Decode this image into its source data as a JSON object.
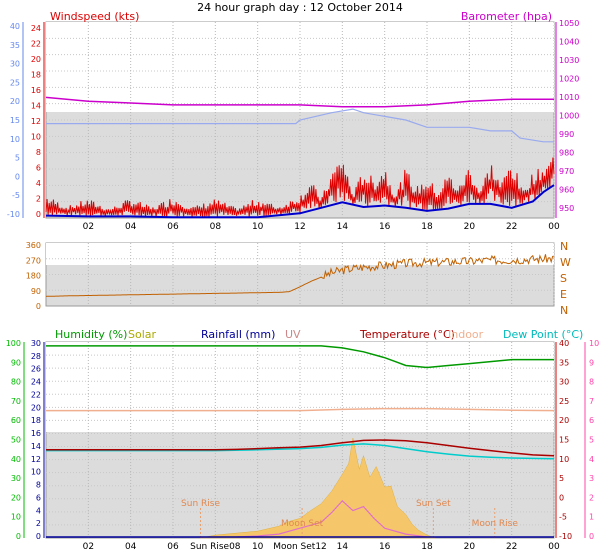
{
  "title": "24 hour graph day : 12 October 2014",
  "colors": {
    "wind": "#dd0000",
    "gust": "#0000cc",
    "baro": "#cc00cc",
    "temp_ref": "#99aaee",
    "dir": "#c06000",
    "humidity": "#009900",
    "solar": "#cccc00",
    "rain": "#000099",
    "uv": "#cc8888",
    "temperature": "#aa0000",
    "indoor": "#f0b090",
    "dewpoint": "#00cccc",
    "pink": "#ff44aa",
    "axis_left": "#6688ee",
    "axis_green": "#00bb00"
  },
  "chart_data": [
    {
      "type": "line",
      "id": "wind-baro",
      "series_labels": {
        "left": "Windspeed (kts)",
        "right": "Barometer (hpa)"
      },
      "left_ticks": [
        "24",
        "22",
        "20",
        "18",
        "16",
        "14",
        "12",
        "10",
        "8",
        "6",
        "4",
        "2",
        "0"
      ],
      "outer_left_ticks": [
        "40",
        "35",
        "30",
        "25",
        "20",
        "15",
        "10",
        "5",
        "0",
        "-5",
        "-10"
      ],
      "right_ticks": [
        "1050",
        "1040",
        "1030",
        "1020",
        "1010",
        "1000",
        "990",
        "980",
        "970",
        "960",
        "950"
      ],
      "x_ticks": [
        "02",
        "04",
        "06",
        "08",
        "10",
        "12",
        "14",
        "16",
        "18",
        "20",
        "22",
        "00"
      ],
      "ylim_wind": [
        0,
        25
      ],
      "ylim_baro": [
        948,
        1052
      ],
      "ylim_outer": [
        -13,
        41
      ],
      "barometer": {
        "x": [
          0,
          2,
          4,
          6,
          8,
          10,
          12,
          14,
          16,
          18,
          20,
          22,
          24
        ],
        "y": [
          1012,
          1010,
          1009,
          1008,
          1008,
          1008,
          1008,
          1007,
          1007,
          1008,
          1010,
          1011,
          1011
        ]
      },
      "ref_line": {
        "x": [
          0,
          4,
          8,
          11.8,
          12,
          13.5,
          14.5,
          15,
          16,
          17,
          18,
          20,
          21,
          22,
          22.4,
          23.5,
          24
        ],
        "y": [
          13,
          13,
          13,
          13,
          14,
          16,
          17,
          16,
          15,
          14,
          12,
          12,
          11,
          11,
          9,
          8,
          8
        ]
      },
      "wind_mean": {
        "x": [
          0,
          2,
          4,
          6,
          8,
          10,
          12,
          13,
          14,
          15,
          16,
          17,
          18,
          19,
          20,
          21,
          22,
          23,
          23.5,
          24
        ],
        "y": [
          0.3,
          0.2,
          0.2,
          0.1,
          0.1,
          0.1,
          0.6,
          1.3,
          2.0,
          1.4,
          1.6,
          1.3,
          0.9,
          1.2,
          1.8,
          1.8,
          1.3,
          2.1,
          3.3,
          4.2
        ]
      },
      "wind_gust": {
        "x": [
          0,
          1,
          2,
          3,
          4,
          5,
          6,
          7,
          8,
          9,
          10,
          11,
          12,
          12.5,
          13,
          13.5,
          14,
          14.5,
          15,
          15.5,
          16,
          16.5,
          17,
          17.5,
          18,
          18.5,
          19,
          19.5,
          20,
          20.5,
          21,
          21.5,
          22,
          22.5,
          23,
          23.5,
          24
        ],
        "y": [
          3,
          1.5,
          2.5,
          1.2,
          2.6,
          1.4,
          2.8,
          1.5,
          2.5,
          1.3,
          2.6,
          1.5,
          3,
          5,
          2.5,
          6,
          8.5,
          3,
          6.5,
          5,
          7,
          3,
          6.5,
          4,
          5.5,
          3.5,
          6,
          4,
          7,
          3.5,
          7.5,
          4.5,
          8,
          3.5,
          6,
          6.5,
          8.5
        ]
      },
      "legend_placement": "top"
    },
    {
      "type": "scatter",
      "id": "wind-direction",
      "left_ticks": [
        "360",
        "270",
        "180",
        "90",
        "0"
      ],
      "right_ticks": [
        "N",
        "W",
        "S",
        "E",
        "N"
      ],
      "x": [
        0,
        1,
        2,
        3,
        4,
        5,
        6,
        7,
        8,
        9,
        10,
        11,
        11.5,
        12,
        12.5,
        13,
        13.5,
        14,
        14.5,
        15,
        15.5,
        16,
        16.5,
        17,
        17.5,
        18,
        18.5,
        19,
        19.5,
        20,
        20.5,
        21,
        21.5,
        22,
        22.5,
        23,
        23.5,
        24
      ],
      "y": [
        55,
        58,
        60,
        62,
        64,
        66,
        68,
        70,
        72,
        74,
        76,
        78,
        82,
        110,
        140,
        165,
        190,
        205,
        215,
        222,
        228,
        232,
        238,
        243,
        246,
        248,
        250,
        252,
        255,
        255,
        260,
        262,
        262,
        264,
        266,
        268,
        270,
        272
      ],
      "ylim": [
        0,
        360
      ]
    },
    {
      "type": "line",
      "id": "temp-humidity",
      "legend": [
        "Humidity (%)",
        "Solar",
        "Rainfall (mm)",
        "UV",
        "Temperature (°C)",
        "Indoor",
        "Dew Point (°C)"
      ],
      "humidity_ticks": [
        "100",
        "90",
        "80",
        "70",
        "60",
        "50",
        "40",
        "30",
        "20",
        "10",
        "0"
      ],
      "rain_ticks": [
        "30",
        "28",
        "26",
        "24",
        "22",
        "20",
        "18",
        "16",
        "14",
        "12",
        "10",
        "8",
        "6",
        "4",
        "2",
        "0"
      ],
      "temp_ticks": [
        "40",
        "35",
        "30",
        "25",
        "20",
        "15",
        "10",
        "5",
        "0",
        "-5",
        "-10"
      ],
      "uv_ticks": [
        "10",
        "9",
        "8",
        "7",
        "6",
        "5",
        "4",
        "3",
        "2",
        "1",
        "0"
      ],
      "x_ticks": [
        "02",
        "04",
        "06",
        "Sun Rise08",
        "10",
        "Moon Set12",
        "14",
        "16",
        "18",
        "20",
        "22",
        "00"
      ],
      "annotations": [
        "Sun Rise",
        "Moon Set",
        "Sun Set",
        "Moon Rise"
      ],
      "ylim_humidity": [
        0,
        100
      ],
      "ylim_temp": [
        -10,
        40
      ],
      "humidity": {
        "x": [
          0,
          2,
          4,
          6,
          8,
          10,
          12,
          13,
          14,
          15,
          16,
          16.5,
          17,
          18,
          19,
          20,
          22,
          24
        ],
        "y": [
          98,
          98,
          98,
          98,
          98,
          98,
          98,
          98,
          97,
          95,
          92,
          90,
          88,
          87,
          88,
          89,
          91,
          91
        ]
      },
      "indoor": {
        "x": [
          0,
          2,
          4,
          6,
          8,
          10,
          12,
          14,
          16,
          18,
          20,
          22,
          24
        ],
        "y": [
          22.5,
          22.5,
          22.5,
          22.5,
          22.5,
          22.5,
          22.5,
          22.8,
          23.0,
          23.0,
          22.8,
          22.6,
          22.5
        ]
      },
      "temperature": {
        "x": [
          0,
          2,
          4,
          6,
          8,
          9,
          10,
          11,
          12,
          13,
          14,
          14.5,
          15,
          16,
          17,
          18,
          19,
          20,
          21,
          22,
          23,
          24
        ],
        "y": [
          12.5,
          12.5,
          12.5,
          12.5,
          12.5,
          12.6,
          12.8,
          13.0,
          13.2,
          13.6,
          14.3,
          14.6,
          14.9,
          15.0,
          14.8,
          14.3,
          13.6,
          12.9,
          12.3,
          11.7,
          11.2,
          11.0
        ]
      },
      "dewpoint": {
        "x": [
          0,
          2,
          4,
          6,
          8,
          10,
          12,
          13,
          14,
          15,
          16,
          17,
          18,
          19,
          20,
          21,
          22,
          23,
          24
        ],
        "y": [
          12.3,
          12.3,
          12.3,
          12.3,
          12.3,
          12.5,
          12.8,
          13.1,
          13.7,
          14.0,
          13.6,
          12.8,
          12.0,
          11.4,
          10.9,
          10.6,
          10.4,
          10.3,
          10.2
        ]
      },
      "solar": {
        "x": [
          7.3,
          8,
          9,
          10,
          11,
          11.5,
          12,
          12.5,
          13,
          13.5,
          14,
          14.3,
          14.5,
          14.8,
          15,
          15.3,
          15.6,
          16,
          16.3,
          16.6,
          17,
          17.3,
          17.6,
          18,
          18.4
        ],
        "y": [
          0,
          0.3,
          0.5,
          0.7,
          1.2,
          1.7,
          2.0,
          2.8,
          3.5,
          4.8,
          6.5,
          7.6,
          10.2,
          7.0,
          8.4,
          6.2,
          7.3,
          5.2,
          5.3,
          3.2,
          2.4,
          1.4,
          0.8,
          0.3,
          0
        ]
      },
      "uv": {
        "x": [
          9,
          10,
          11,
          12,
          13,
          13.5,
          14,
          14.5,
          15,
          15.5,
          16,
          17,
          18
        ],
        "y": [
          0.05,
          0.1,
          0.2,
          0.5,
          0.8,
          1.3,
          1.9,
          1.4,
          1.6,
          1.0,
          0.5,
          0.2,
          0.05
        ]
      },
      "rain": {
        "x": [
          0,
          24
        ],
        "y": [
          0,
          0
        ]
      }
    }
  ]
}
